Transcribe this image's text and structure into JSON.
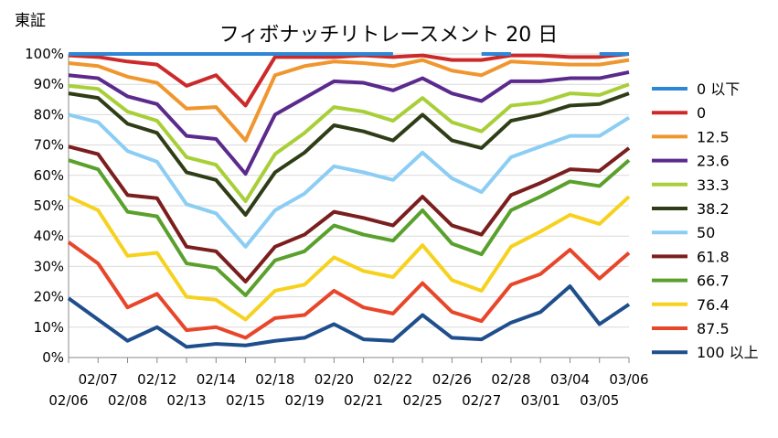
{
  "chart_data": {
    "type": "line",
    "title": "フィボナッチリトレースメント 20 日",
    "ylabel": "東証",
    "xlabel": "",
    "ylim": [
      0,
      100
    ],
    "yticks": [
      "0%",
      "10%",
      "20%",
      "30%",
      "40%",
      "50%",
      "60%",
      "70%",
      "80%",
      "90%",
      "100%"
    ],
    "grid": "horizontal",
    "legend": "right",
    "x": [
      "02/06",
      "02/07",
      "02/08",
      "02/12",
      "02/13",
      "02/14",
      "02/15",
      "02/18",
      "02/19",
      "02/20",
      "02/21",
      "02/22",
      "02/25",
      "02/26",
      "02/27",
      "02/28",
      "03/01",
      "03/04",
      "03/05",
      "03/06"
    ],
    "x_tick_labels": [
      {
        "label": "02/06",
        "row": 2
      },
      {
        "label": "02/07",
        "row": 1
      },
      {
        "label": "02/08",
        "row": 2
      },
      {
        "label": "02/12",
        "row": 1
      },
      {
        "label": "02/13",
        "row": 2
      },
      {
        "label": "02/14",
        "row": 1
      },
      {
        "label": "02/15",
        "row": 2
      },
      {
        "label": "02/18",
        "row": 1
      },
      {
        "label": "02/19",
        "row": 2
      },
      {
        "label": "02/20",
        "row": 1
      },
      {
        "label": "02/21",
        "row": 2
      },
      {
        "label": "02/22",
        "row": 1
      },
      {
        "label": "02/25",
        "row": 2
      },
      {
        "label": "02/26",
        "row": 1
      },
      {
        "label": "02/27",
        "row": 2
      },
      {
        "label": "02/28",
        "row": 1
      },
      {
        "label": "03/01",
        "row": 2
      },
      {
        "label": "03/04",
        "row": 1
      },
      {
        "label": "03/05",
        "row": 2
      },
      {
        "label": "03/06",
        "row": 1
      }
    ],
    "series": [
      {
        "name": "0 以下",
        "color": "#2e86d6",
        "segments": [
          [
            0,
            11
          ],
          [
            14,
            15
          ],
          [
            18,
            19
          ]
        ],
        "values": [
          100,
          100,
          100,
          100,
          100,
          100,
          100,
          100,
          100,
          100,
          100,
          100,
          100,
          100,
          100,
          100,
          100,
          100,
          100,
          100
        ]
      },
      {
        "name": "0",
        "color": "#cc2a2a",
        "values": [
          99.5,
          99,
          97.5,
          96.5,
          89.5,
          93,
          83,
          99,
          99,
          99,
          99.5,
          99,
          99.5,
          98,
          98,
          99.5,
          99.5,
          99,
          99,
          100
        ]
      },
      {
        "name": "12.5",
        "color": "#f0962e",
        "values": [
          97,
          96,
          92.5,
          90.5,
          82,
          82.5,
          71.5,
          93,
          96,
          97.5,
          97,
          96,
          98,
          94.5,
          93,
          97.5,
          97,
          96.5,
          96.5,
          98
        ]
      },
      {
        "name": "23.6",
        "color": "#5b2a8c",
        "values": [
          93,
          92,
          86,
          83.5,
          73,
          72,
          60.5,
          80,
          85.5,
          91,
          90.5,
          88,
          92,
          87,
          84.5,
          91,
          91,
          92,
          92,
          94
        ]
      },
      {
        "name": "33.3",
        "color": "#a8cf38",
        "values": [
          89.5,
          88.5,
          81,
          78,
          66,
          63.5,
          51.5,
          67,
          74,
          82.5,
          81,
          78,
          85.5,
          77.5,
          74.5,
          83,
          84,
          87,
          86.5,
          90
        ]
      },
      {
        "name": "38.2",
        "color": "#2f3d17",
        "values": [
          87,
          85.5,
          77,
          74,
          61,
          58.5,
          47,
          61,
          67.5,
          76.5,
          74.5,
          71.5,
          80,
          71.5,
          69,
          78,
          80,
          83,
          83.5,
          87
        ]
      },
      {
        "name": "50",
        "color": "#8ccdf4",
        "values": [
          80,
          77.5,
          68,
          64.5,
          50.5,
          47.5,
          36.5,
          48.5,
          54,
          63,
          61,
          58.5,
          67.5,
          59,
          54.5,
          66,
          69.5,
          73,
          73,
          79
        ]
      },
      {
        "name": "61.8",
        "color": "#7a1e1e",
        "values": [
          69.5,
          67,
          53.5,
          52.5,
          36.5,
          35,
          25,
          36.5,
          40.5,
          48,
          46,
          43.5,
          53,
          43.5,
          40.5,
          53.5,
          57.5,
          62,
          61.5,
          69
        ]
      },
      {
        "name": "66.7",
        "color": "#5aa02c",
        "values": [
          65,
          62,
          48,
          46.5,
          31,
          29.5,
          20.5,
          32,
          35,
          43.5,
          40.5,
          38.5,
          48.5,
          37.5,
          34,
          48.5,
          53,
          58,
          56.5,
          65
        ]
      },
      {
        "name": "76.4",
        "color": "#f6d21e",
        "values": [
          53,
          48.5,
          33.5,
          34.5,
          20,
          19,
          12.5,
          22,
          24,
          33,
          28.5,
          26.5,
          37,
          25.5,
          22,
          36.5,
          41.5,
          47,
          44,
          53
        ]
      },
      {
        "name": "87.5",
        "color": "#e8462a",
        "values": [
          38,
          31,
          16.5,
          21,
          9,
          10,
          6.5,
          13,
          14,
          22,
          16.5,
          14.5,
          24.5,
          15,
          12,
          24,
          27.5,
          35.5,
          26,
          34.5
        ]
      },
      {
        "name": "100 以上",
        "color": "#1f4e8c",
        "values": [
          19.5,
          12.5,
          5.5,
          10,
          3.5,
          4.5,
          4,
          5.5,
          6.5,
          11,
          6,
          5.5,
          14,
          6.5,
          6,
          11.5,
          15,
          23.5,
          11,
          17.5
        ]
      }
    ]
  }
}
